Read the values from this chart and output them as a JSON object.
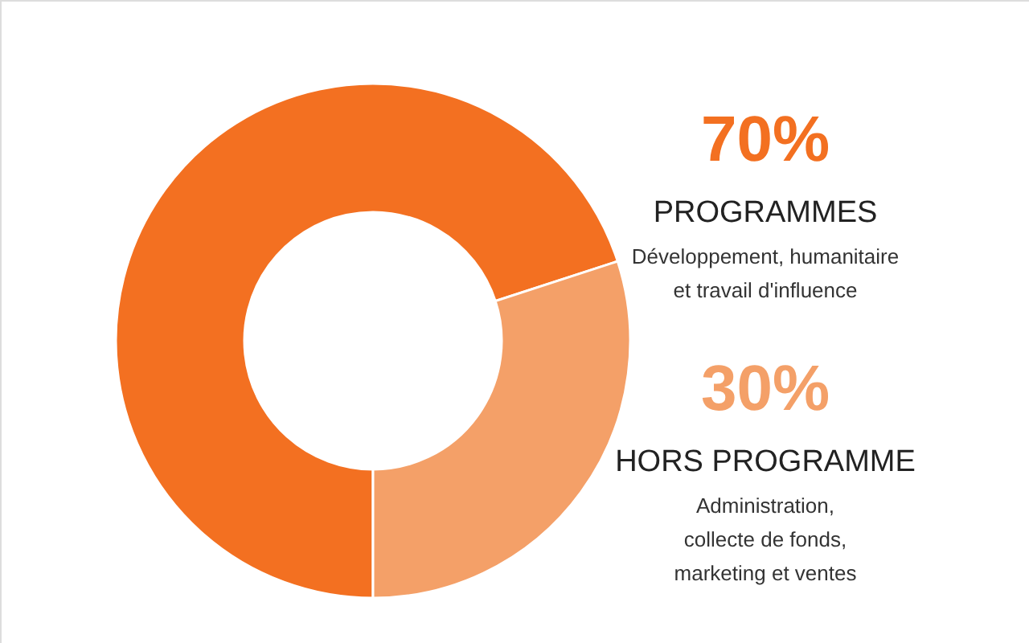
{
  "chart_data": {
    "type": "donut",
    "categories": [
      "PROGRAMMES",
      "HORS PROGRAMME"
    ],
    "values": [
      70,
      30
    ],
    "colors": [
      "#f37021",
      "#f4a068"
    ],
    "value_labels": [
      "70%",
      "30%"
    ],
    "annotations": [
      "Développement, humanitaire\net travail d'influence",
      "Administration,\ncollecte de fonds,\nmarketing et ventes"
    ]
  }
}
